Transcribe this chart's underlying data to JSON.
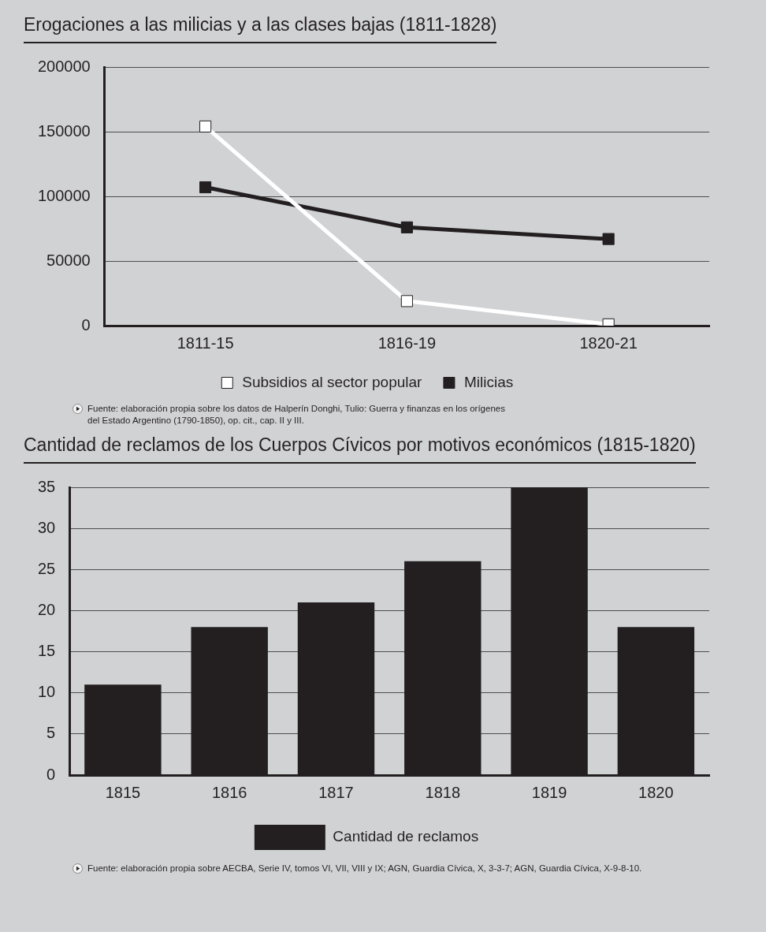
{
  "chart_data": [
    {
      "type": "line",
      "title": "Erogaciones a las milicias y a las clases bajas (1811-1828)",
      "categories": [
        "1811-15",
        "1816-19",
        "1820-21"
      ],
      "series": [
        {
          "name": "Subsidios al sector popular",
          "color": "#ffffff",
          "values": [
            154000,
            19000,
            1000
          ]
        },
        {
          "name": "Milicias",
          "color": "#231f20",
          "values": [
            107000,
            76000,
            67000
          ]
        }
      ],
      "ylim": [
        0,
        200000
      ],
      "yticks": [
        0,
        50000,
        100000,
        150000,
        200000
      ],
      "grid": "y",
      "legend": "bottom",
      "marker": "square",
      "line_style": "solid",
      "annotations": [
        "Fuente: elaboración propia sobre los datos de Halperín Donghi, Tulio: Guerra y finanzas en los orígenes del Estado Argentino (1790-1850), op. cit., cap. II y III."
      ]
    },
    {
      "type": "bar",
      "title": "Cantidad de reclamos de los Cuerpos Cívicos por motivos económicos (1815-1820)",
      "categories": [
        "1815",
        "1816",
        "1817",
        "1818",
        "1819",
        "1820"
      ],
      "series": [
        {
          "name": "Cantidad de reclamos",
          "color": "#231f20",
          "values": [
            11,
            18,
            21,
            26,
            35,
            18
          ]
        }
      ],
      "ylim": [
        0,
        35
      ],
      "yticks": [
        0,
        5,
        10,
        15,
        20,
        25,
        30,
        35
      ],
      "grid": "y",
      "legend": "bottom",
      "annotations": [
        "Fuente: elaboración propia sobre AECBA, Serie IV, tomos VI, VII, VIII y IX; AGN, Guardia Cívica, X, 3-3-7; AGN, Guardia Cívica, X-9-8-10."
      ]
    }
  ]
}
